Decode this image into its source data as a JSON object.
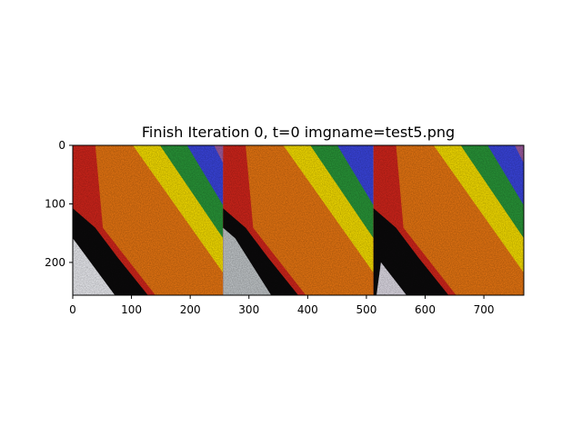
{
  "figure": {
    "title": "Finish Iteration 0, t=0 imgname=test5.png"
  },
  "plot": {
    "xlim": [
      0,
      768
    ],
    "ylim_top_to_bottom": [
      0,
      256
    ],
    "xticks": [
      0,
      100,
      200,
      300,
      400,
      500,
      600,
      700
    ],
    "yticks": [
      0,
      100,
      200
    ],
    "panels": [
      {
        "name": "panel-1",
        "x_start": 0,
        "x_end": 256
      },
      {
        "name": "panel-2",
        "x_start": 256,
        "x_end": 512
      },
      {
        "name": "panel-3",
        "x_start": 512,
        "x_end": 768
      }
    ],
    "colors": {
      "red": "#d9261c",
      "orange": "#f07a12",
      "yellow": "#ffe600",
      "green": "#2a9b3a",
      "blue": "#3c47e6",
      "black": "#0b0a0b",
      "white": "#f5f6fb",
      "purple": "#a45fa5"
    }
  }
}
